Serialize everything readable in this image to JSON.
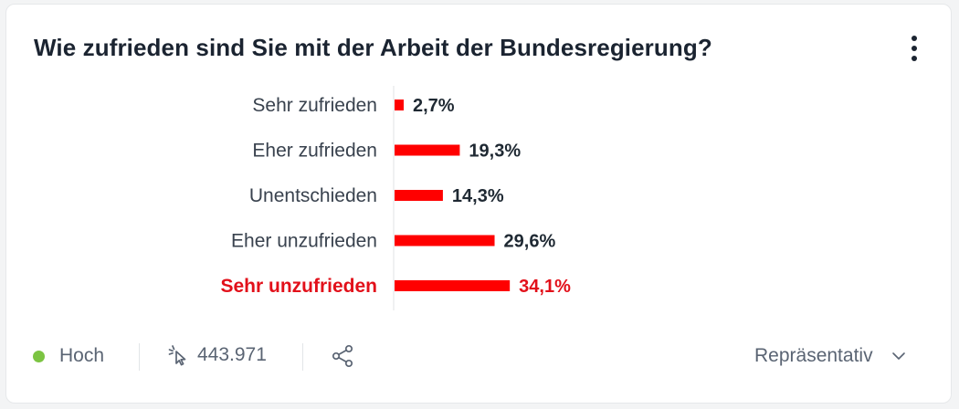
{
  "poll": {
    "title": "Wie zufrieden sind Sie mit der Arbeit der Bundesregierung?"
  },
  "chart_data": {
    "type": "bar",
    "orientation": "horizontal",
    "categories": [
      "Sehr zufrieden",
      "Eher zufrieden",
      "Unentschieden",
      "Eher unzufrieden",
      "Sehr unzufrieden"
    ],
    "values": [
      2.7,
      19.3,
      14.3,
      29.6,
      34.1
    ],
    "value_labels": [
      "2,7%",
      "19,3%",
      "14,3%",
      "29,6%",
      "34,1%"
    ],
    "highlight_index": 4,
    "xlim": [
      0,
      100
    ],
    "grid": false,
    "legend": "none"
  },
  "colors": {
    "bar": "#ff0000",
    "label": "#39424e",
    "highlight_label": "#e2101a",
    "value_label": "#1f2933",
    "status_dot": "#7cc442"
  },
  "footer": {
    "status_label": "Hoch",
    "votes_icon": "cursor-click-icon",
    "votes_count": "443.971",
    "share_icon": "share-icon",
    "sample_label": "Repräsentativ",
    "sample_icon": "chevron-down-icon"
  }
}
